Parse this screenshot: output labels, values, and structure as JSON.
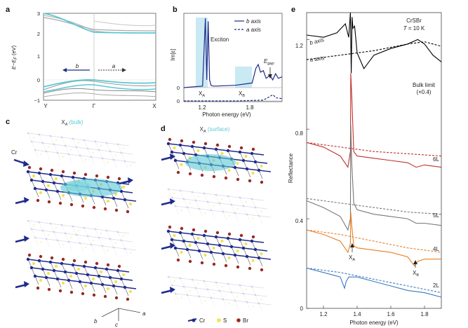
{
  "panels": {
    "a": "a",
    "b": "b",
    "c": "c",
    "d": "d",
    "e": "e"
  },
  "colors": {
    "cyan": "#5bc8d4",
    "navy": "#1f2a8c",
    "red": "#c0312b",
    "gray": "#777777",
    "orange": "#e67e22",
    "blue": "#3a78c2",
    "yellow": "#f2e24a",
    "brown": "#9a2a22",
    "highlight": "#bfe6f0"
  },
  "panel_a": {
    "ylabel": "E−E_F (eV)",
    "ylabel_main": "E−E",
    "ylabel_sub": "F",
    "ylabel_unit": " (eV)",
    "yticks": [
      "3",
      "2",
      "1",
      "0",
      "−1"
    ],
    "xticks": [
      "Y",
      "Γ",
      "X"
    ],
    "b_label": "b",
    "a_label": "a"
  },
  "panel_b": {
    "ylabel": "Im[ε]",
    "xlabel": "Photon energy (eV)",
    "xticks": [
      "1.2",
      "1.8"
    ],
    "yticks": [
      "0",
      "0"
    ],
    "legend": [
      "b axis",
      "a axis"
    ],
    "exciton_label": "Exciton",
    "XA": "X",
    "XA_sub": "A",
    "XB": "X",
    "XB_sub": "B",
    "Egap": "E",
    "Egap_sub": "gap"
  },
  "panel_c": {
    "title_X": "X",
    "title_sub": "A",
    "title_rest": " (bulk)",
    "cr_label": "Cr",
    "axes": [
      "b",
      "c",
      "a"
    ]
  },
  "panel_d": {
    "title_X": "X",
    "title_sub": "A",
    "title_rest": " (surface)",
    "legend": [
      "Cr",
      "S",
      "Br"
    ]
  },
  "panel_e": {
    "header_line1": "CrSBr",
    "header_T": "T",
    "header_line2_rest": " = 10 K",
    "ylabel": "Reflectance",
    "xlabel": "Photon energy (eV)",
    "yticks": [
      "1.2",
      "0.8",
      "0.4",
      "0"
    ],
    "xticks": [
      "1.2",
      "1.4",
      "1.6",
      "1.8"
    ],
    "labels": {
      "b_axis": "b axis",
      "a_axis": "a axis",
      "bulk_limit": "Bulk limit",
      "bulk_scale": "(×0.4)",
      "L6": "6L",
      "L5": "5L",
      "L4": "4L",
      "L2": "2L",
      "XA": "X",
      "XA_sub": "A",
      "XB": "X",
      "XB_sub": "B"
    }
  },
  "chart_data": [
    {
      "type": "line",
      "title": "",
      "xlabel": "",
      "ylabel": "E−E_F (eV)",
      "categories": [
        "Y",
        "Γ",
        "X"
      ],
      "ylim": [
        -1.3,
        3.0
      ],
      "series": [
        {
          "name": "highlighted conduction band (cyan)",
          "x": [
            0,
            0.5,
            1.0
          ],
          "y": [
            2.8,
            2.2,
            2.15
          ]
        },
        {
          "name": "highlighted valence band (cyan)",
          "x": [
            0,
            0.5,
            1.0
          ],
          "y": [
            -0.45,
            -0.05,
            -0.3
          ]
        }
      ]
    },
    {
      "type": "line",
      "title": "",
      "xlabel": "Photon energy (eV)",
      "ylabel": "Im[ε]",
      "xlim": [
        0.95,
        2.0
      ],
      "series": [
        {
          "name": "b axis",
          "style": "solid",
          "x": [
            0.95,
            1.15,
            1.18,
            1.195,
            1.21,
            1.225,
            1.24,
            1.26,
            1.3,
            1.5,
            1.68,
            1.72,
            1.745,
            1.77,
            1.8,
            1.83,
            1.87,
            1.9,
            1.93,
            1.96,
            2.0
          ],
          "y": [
            0.0,
            0.02,
            0.9,
            0.1,
            0.86,
            0.1,
            0.03,
            0.02,
            0.02,
            0.03,
            0.06,
            0.25,
            0.3,
            0.2,
            0.22,
            0.12,
            0.16,
            0.1,
            0.18,
            0.12,
            0.14
          ]
        },
        {
          "name": "a axis",
          "style": "dashed",
          "x": [
            0.95,
            1.5,
            1.8,
            1.86,
            1.9,
            1.94,
            2.0
          ],
          "y": [
            0.0,
            0.0,
            0.01,
            0.05,
            0.08,
            0.04,
            0.03
          ]
        }
      ]
    },
    {
      "type": "line",
      "title": "CrSBr T = 10 K",
      "xlabel": "Photon energy (eV)",
      "ylabel": "Reflectance",
      "xlim": [
        1.1,
        1.9
      ],
      "ylim": [
        0,
        1.32
      ],
      "xticks": [
        1.2,
        1.4,
        1.6,
        1.8
      ],
      "yticks": [
        0,
        0.4,
        0.8,
        1.2
      ],
      "series": [
        {
          "name": "b axis (bulk ×0.4)",
          "color": "#000000",
          "style": "solid",
          "x": [
            1.1,
            1.2,
            1.28,
            1.33,
            1.35,
            1.36,
            1.365,
            1.37,
            1.375,
            1.385,
            1.4,
            1.44,
            1.5,
            1.6,
            1.7,
            1.76,
            1.8,
            1.85,
            1.9
          ],
          "y": [
            1.22,
            1.21,
            1.23,
            1.27,
            1.21,
            1.32,
            1.05,
            1.3,
            1.25,
            1.26,
            1.14,
            1.07,
            1.13,
            1.16,
            1.18,
            1.2,
            1.18,
            1.13,
            1.1
          ]
        },
        {
          "name": "a axis (bulk ×0.4)",
          "color": "#000000",
          "style": "dashed",
          "x": [
            1.1,
            1.3,
            1.5,
            1.7,
            1.8,
            1.9
          ],
          "y": [
            1.11,
            1.13,
            1.15,
            1.18,
            1.19,
            1.17
          ]
        },
        {
          "name": "6L",
          "color": "#c0312b",
          "style": "solid",
          "x": [
            1.1,
            1.2,
            1.3,
            1.345,
            1.36,
            1.362,
            1.368,
            1.38,
            1.4,
            1.5,
            1.6,
            1.7,
            1.75,
            1.8,
            1.9
          ],
          "y": [
            0.74,
            0.72,
            0.68,
            0.63,
            0.7,
            1.05,
            0.95,
            0.7,
            0.68,
            0.67,
            0.66,
            0.65,
            0.63,
            0.64,
            0.63
          ]
        },
        {
          "name": "6L a axis",
          "color": "#c0312b",
          "style": "dashed",
          "x": [
            1.1,
            1.3,
            1.5,
            1.7,
            1.9
          ],
          "y": [
            0.74,
            0.72,
            0.7,
            0.69,
            0.68
          ]
        },
        {
          "name": "5L",
          "color": "#777777",
          "style": "solid",
          "x": [
            1.1,
            1.2,
            1.3,
            1.345,
            1.36,
            1.362,
            1.368,
            1.38,
            1.4,
            1.5,
            1.6,
            1.7,
            1.75,
            1.8,
            1.9
          ],
          "y": [
            0.48,
            0.45,
            0.41,
            0.35,
            0.4,
            0.82,
            0.65,
            0.47,
            0.44,
            0.42,
            0.41,
            0.4,
            0.38,
            0.38,
            0.37
          ]
        },
        {
          "name": "5L a axis",
          "color": "#777777",
          "style": "dashed",
          "x": [
            1.1,
            1.3,
            1.5,
            1.7,
            1.9
          ],
          "y": [
            0.49,
            0.47,
            0.45,
            0.43,
            0.42
          ]
        },
        {
          "name": "4L",
          "color": "#e67e22",
          "style": "solid",
          "x": [
            1.1,
            1.2,
            1.3,
            1.345,
            1.36,
            1.362,
            1.368,
            1.38,
            1.4,
            1.5,
            1.6,
            1.7,
            1.74,
            1.76,
            1.8,
            1.9
          ],
          "y": [
            0.35,
            0.33,
            0.3,
            0.25,
            0.29,
            0.43,
            0.37,
            0.28,
            0.27,
            0.26,
            0.25,
            0.23,
            0.19,
            0.21,
            0.22,
            0.22
          ]
        },
        {
          "name": "4L a axis",
          "color": "#e67e22",
          "style": "dashed",
          "x": [
            1.1,
            1.3,
            1.5,
            1.7,
            1.9
          ],
          "y": [
            0.35,
            0.33,
            0.3,
            0.27,
            0.25
          ]
        },
        {
          "name": "2L",
          "color": "#3a78c2",
          "style": "solid",
          "x": [
            1.1,
            1.2,
            1.3,
            1.325,
            1.335,
            1.35,
            1.4,
            1.5,
            1.6,
            1.7,
            1.8,
            1.9
          ],
          "y": [
            0.18,
            0.16,
            0.14,
            0.09,
            0.12,
            0.14,
            0.14,
            0.12,
            0.1,
            0.08,
            0.07,
            0.05
          ]
        },
        {
          "name": "2L a axis",
          "color": "#3a78c2",
          "style": "dashed",
          "x": [
            1.1,
            1.3,
            1.5,
            1.7,
            1.9
          ],
          "y": [
            0.18,
            0.16,
            0.13,
            0.1,
            0.07
          ]
        }
      ]
    }
  ]
}
